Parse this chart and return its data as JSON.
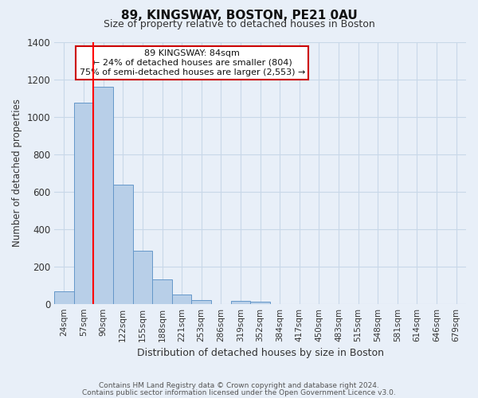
{
  "title": "89, KINGSWAY, BOSTON, PE21 0AU",
  "subtitle": "Size of property relative to detached houses in Boston",
  "xlabel": "Distribution of detached houses by size in Boston",
  "ylabel": "Number of detached properties",
  "bar_labels": [
    "24sqm",
    "57sqm",
    "90sqm",
    "122sqm",
    "155sqm",
    "188sqm",
    "221sqm",
    "253sqm",
    "286sqm",
    "319sqm",
    "352sqm",
    "384sqm",
    "417sqm",
    "450sqm",
    "483sqm",
    "515sqm",
    "548sqm",
    "581sqm",
    "614sqm",
    "646sqm",
    "679sqm"
  ],
  "bar_values": [
    65,
    1075,
    1160,
    635,
    285,
    130,
    48,
    20,
    0,
    15,
    10,
    0,
    0,
    0,
    0,
    0,
    0,
    0,
    0,
    0,
    0
  ],
  "bar_color": "#b8cfe8",
  "bar_edge_color": "#6497c9",
  "grid_color": "#c8d8e8",
  "bg_color": "#e8eff8",
  "red_line_bar_index": 2,
  "annotation_title": "89 KINGSWAY: 84sqm",
  "annotation_line1": "← 24% of detached houses are smaller (804)",
  "annotation_line2": "75% of semi-detached houses are larger (2,553) →",
  "annotation_box_color": "#ffffff",
  "annotation_border_color": "#cc0000",
  "ylim": [
    0,
    1400
  ],
  "yticks": [
    0,
    200,
    400,
    600,
    800,
    1000,
    1200,
    1400
  ],
  "footer_line1": "Contains HM Land Registry data © Crown copyright and database right 2024.",
  "footer_line2": "Contains public sector information licensed under the Open Government Licence v3.0."
}
